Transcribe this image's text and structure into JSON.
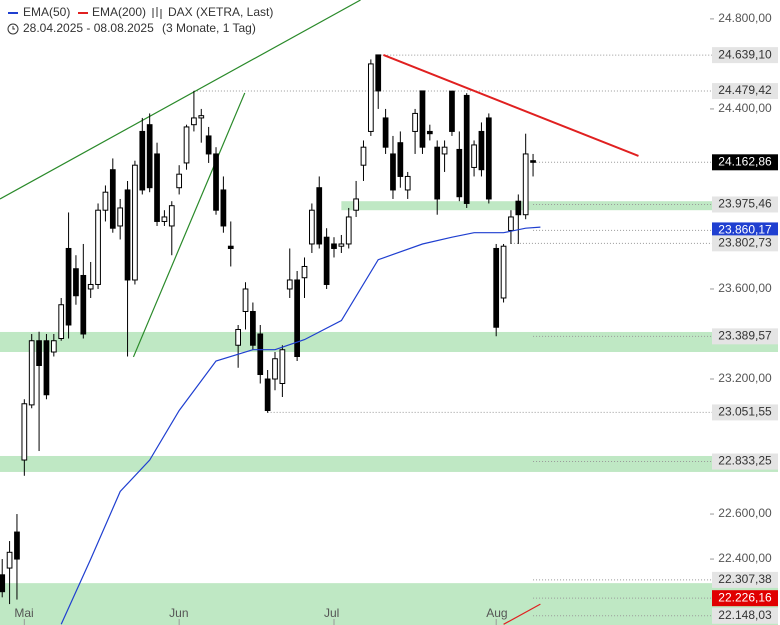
{
  "chart_data": {
    "type": "candlestick",
    "title": "DAX (XETRA, Last)",
    "date_range": "28.04.2025 - 08.08.2025",
    "period": "(3 Monate, 1 Tag)",
    "open": [
      22330,
      22360,
      22520,
      22840,
      23085,
      23370,
      23370,
      23320,
      23380,
      23780,
      23690,
      23660,
      23600,
      23620,
      23950,
      24130,
      23880,
      24040,
      23640,
      24300,
      24330,
      24200,
      23900,
      23880,
      24050,
      24160,
      24330,
      24360,
      24280,
      24200,
      24040,
      23790,
      23350,
      23500,
      23500,
      23400,
      23200,
      23200,
      23180,
      23600,
      23640,
      23650,
      23800,
      24050,
      23830,
      23800,
      23790,
      23800,
      23950,
      24150,
      24300,
      24640,
      24360,
      24200,
      24250,
      24040,
      24300,
      24480,
      24300,
      24230,
      24200,
      24479,
      24220,
      24460,
      24140,
      24300,
      24360,
      23780,
      23560,
      23860,
      23990,
      23930,
      24170
    ],
    "high": [
      22400,
      22480,
      22600,
      23110,
      23400,
      23410,
      23400,
      23400,
      23560,
      23940,
      23750,
      23800,
      23720,
      23980,
      24060,
      24180,
      24000,
      24080,
      24170,
      24360,
      24380,
      24250,
      23950,
      23990,
      24150,
      24330,
      24480,
      24400,
      24320,
      24230,
      24100,
      23900,
      23440,
      23630,
      23540,
      23440,
      23240,
      23320,
      23350,
      23780,
      23680,
      23740,
      23980,
      24100,
      23870,
      23830,
      23840,
      23960,
      24080,
      24260,
      24620,
      24640,
      24400,
      24280,
      24300,
      24120,
      24400,
      24480,
      24330,
      24260,
      24260,
      24479,
      24300,
      24470,
      24260,
      24340,
      24380,
      23800,
      23800,
      23950,
      24020,
      24290,
      24200
    ],
    "low": [
      22230,
      22200,
      22220,
      22770,
      23070,
      22880,
      23110,
      23300,
      23370,
      23380,
      23530,
      23380,
      23560,
      23600,
      23900,
      23850,
      23820,
      23300,
      23620,
      24020,
      24030,
      23880,
      23880,
      23750,
      24020,
      24130,
      24300,
      24250,
      24160,
      23930,
      23850,
      23700,
      23250,
      23420,
      23330,
      23180,
      23050,
      23150,
      23120,
      23560,
      23280,
      23560,
      23760,
      23780,
      23600,
      23740,
      23760,
      23780,
      23920,
      24080,
      24280,
      24400,
      24200,
      24000,
      24050,
      24000,
      24200,
      24200,
      24260,
      23930,
      24120,
      24280,
      23990,
      23960,
      24100,
      24100,
      23980,
      23390,
      23540,
      23800,
      23800,
      23910,
      24100
    ],
    "close": [
      22255,
      22430,
      22400,
      23090,
      23370,
      23260,
      23130,
      23370,
      23530,
      23440,
      23570,
      23400,
      23620,
      23950,
      24030,
      23870,
      23960,
      23640,
      24150,
      24040,
      24050,
      23900,
      23920,
      23970,
      24110,
      24320,
      24360,
      24370,
      24200,
      23950,
      23880,
      23780,
      23420,
      23600,
      23350,
      23220,
      23060,
      23290,
      23330,
      23640,
      23300,
      23700,
      23950,
      23800,
      23620,
      23780,
      23800,
      23920,
      24000,
      24230,
      24600,
      24480,
      24230,
      24040,
      24100,
      24100,
      24380,
      24230,
      24290,
      24000,
      24230,
      24300,
      24010,
      23980,
      24240,
      24130,
      24000,
      23430,
      23790,
      23920,
      23930,
      24200,
      24162.86
    ],
    "up_color": "#ffffff",
    "down_color": "#000000",
    "xlim": [
      -0.3,
      96
    ],
    "xticks": [
      {
        "value": 3,
        "label": "Mai"
      },
      {
        "value": 24,
        "label": "Jun"
      },
      {
        "value": 45,
        "label": "Jul"
      },
      {
        "value": 67,
        "label": "Aug"
      }
    ],
    "ylim": [
      22107,
      24884
    ],
    "yticks": [
      {
        "value": 24800,
        "label": "24.800,00"
      },
      {
        "value": 24400,
        "label": "24.400,00"
      },
      {
        "value": 23600,
        "label": "23.600,00"
      },
      {
        "value": 23200,
        "label": "23.200,00"
      },
      {
        "value": 22600,
        "label": "22.600,00"
      },
      {
        "value": 22400,
        "label": "22.400,00"
      }
    ],
    "series": [
      {
        "name": "EMA(50)",
        "color": "#1f3fd0",
        "x": [
          8,
          12,
          16,
          20,
          24,
          29,
          34,
          37,
          41,
          46,
          51,
          57,
          61,
          64,
          68,
          71,
          73
        ],
        "values": [
          22110,
          22400,
          22700,
          22840,
          23060,
          23280,
          23330,
          23330,
          23375,
          23460,
          23730,
          23800,
          23830,
          23850,
          23850,
          23870,
          23875
        ]
      },
      {
        "name": "EMA(200)",
        "color": "#e02020",
        "x": [
          68,
          73
        ],
        "values": [
          22110,
          22200
        ]
      }
    ],
    "zones": [
      {
        "lo": 23950,
        "hi": 23990,
        "from": 46
      },
      {
        "lo": 23320,
        "hi": 23409,
        "from": -0.3
      },
      {
        "lo": 22787,
        "hi": 22858,
        "from": -0.3
      },
      {
        "lo": 22107,
        "hi": 22293,
        "from": -0.3
      }
    ],
    "zone_color": "#bfe8c4",
    "trendlines": [
      {
        "x": [
          -0.3,
          48.6
        ],
        "values": [
          24000,
          24884
        ],
        "color": "#2a8a2a"
      },
      {
        "x": [
          17.8,
          32.9
        ],
        "values": [
          23298,
          24471
        ],
        "color": "#2a8a2a"
      },
      {
        "x": [
          51.7,
          86.3
        ],
        "values": [
          24640,
          24191
        ],
        "color": "#e02020"
      }
    ],
    "levels": [
      {
        "value": 24639.1,
        "label": "24.639,10",
        "bg": "#e4e4e4",
        "fg": "#333333",
        "from": 51
      },
      {
        "value": 24479.42,
        "label": "24.479,42",
        "bg": "#e4e4e4",
        "fg": "#333333",
        "from": 26
      },
      {
        "value": 24162.86,
        "label": "24.162,86",
        "bg": "#000000",
        "fg": "#ffffff",
        "from": 72
      },
      {
        "value": 23975.46,
        "label": "23.975,46",
        "bg": "#e4e4e4",
        "fg": "#333333",
        "from": 72
      },
      {
        "value": 23860.17,
        "label": "23.860,17",
        "bg": "#1f3fd0",
        "fg": "#ffffff",
        "from": 72
      },
      {
        "value": 23802.73,
        "label": "23.802,73",
        "bg": "#e4e4e4",
        "fg": "#333333",
        "from": 69
      },
      {
        "value": 23389.57,
        "label": "23.389,57",
        "bg": "#e4e4e4",
        "fg": "#333333",
        "from": 72
      },
      {
        "value": 23051.55,
        "label": "23.051,55",
        "bg": "#e4e4e4",
        "fg": "#333333",
        "from": 36
      },
      {
        "value": 22833.25,
        "label": "22.833,25",
        "bg": "#e4e4e4",
        "fg": "#333333",
        "from": 72
      },
      {
        "value": 22307.38,
        "label": "22.307,38",
        "bg": "#e4e4e4",
        "fg": "#333333",
        "from": 72
      },
      {
        "value": 22226.16,
        "label": "22.226,16",
        "bg": "#e00000",
        "fg": "#ffffff",
        "from": 72
      },
      {
        "value": 22148.03,
        "label": "22.148,03",
        "bg": "#e4e4e4",
        "fg": "#333333",
        "from": 72
      }
    ]
  }
}
